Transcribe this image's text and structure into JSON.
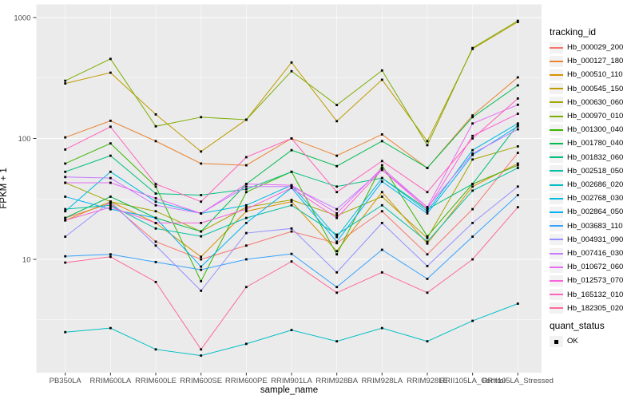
{
  "figure": {
    "background": "#FFFFFF",
    "panel_background": "#EBEBEB",
    "gridline_color": "#FFFFFF",
    "axis_text_color": "#4D4D4D",
    "tick_color": "#333333",
    "point_color": "#000000",
    "legend_key_fill": "#F2F2F2"
  },
  "chart_data": {
    "type": "line",
    "title": "",
    "xlabel": "sample_name",
    "ylabel": "FPKM + 1",
    "y_scale": "log10",
    "y_ticks": [
      1000,
      100,
      10
    ],
    "y_tick_labels": [
      "1000",
      "100",
      "10"
    ],
    "y_minor_ticks": [
      316.2,
      31.62,
      3.162
    ],
    "ylim": [
      1.4,
      1150
    ],
    "grid": "on",
    "legend_position": "right",
    "point_shape": "filled-square",
    "categories": [
      "PB350LA",
      "RRIM600LA",
      "RRIM600LE",
      "RRIM600SE",
      "RRIM600PE",
      "RRIM901LA",
      "RRIM928BA",
      "RRIM928LA",
      "RRIM928LE",
      "RRII105LA_Control",
      "RRII105LA_Stressed"
    ],
    "series": [
      {
        "name": "Hb_000029_200",
        "color": "#F8766D",
        "values": [
          22,
          29,
          14,
          10,
          13,
          17,
          13.6,
          25,
          11,
          26,
          76
        ]
      },
      {
        "name": "Hb_000127_180",
        "color": "#EA8331",
        "values": [
          102,
          140,
          95,
          62,
          60,
          100,
          72,
          108,
          57,
          155,
          320
        ]
      },
      {
        "name": "Hb_000510_110",
        "color": "#D89000",
        "values": [
          21,
          30,
          20,
          10.5,
          25,
          30,
          11.7,
          36,
          13.5,
          40,
          62
        ]
      },
      {
        "name": "Hb_000545_150",
        "color": "#C09B00",
        "values": [
          285,
          350,
          158,
          78,
          143,
          425,
          139,
          306,
          95,
          550,
          920
        ]
      },
      {
        "name": "Hb_000630_060",
        "color": "#A3A500",
        "values": [
          43,
          30,
          25,
          17,
          27,
          31,
          23,
          33,
          15,
          67,
          86
        ]
      },
      {
        "name": "Hb_000970_010",
        "color": "#7CAE00",
        "values": [
          300,
          455,
          126,
          150,
          143,
          360,
          189,
          365,
          88,
          560,
          940
        ]
      },
      {
        "name": "Hb_001300_040",
        "color": "#39B600",
        "values": [
          62,
          91,
          40,
          6.6,
          36,
          53,
          11,
          60,
          15.5,
          42,
          60
        ]
      },
      {
        "name": "Hb_001780_040",
        "color": "#00BB4E",
        "values": [
          22,
          33,
          22,
          17,
          42,
          80,
          59,
          95,
          57,
          150,
          275
        ]
      },
      {
        "name": "Hb_001832_060",
        "color": "#00BF7D",
        "values": [
          53,
          72,
          35,
          34,
          38,
          53,
          40,
          47,
          26,
          42,
          130
        ]
      },
      {
        "name": "Hb_002518_050",
        "color": "#00C1A3",
        "values": [
          26,
          28,
          18,
          15.5,
          22,
          28,
          16,
          28,
          14,
          37,
          57
        ]
      },
      {
        "name": "Hb_002686_020",
        "color": "#00BFC4",
        "values": [
          2.5,
          2.7,
          1.8,
          1.6,
          2.0,
          2.6,
          2.1,
          2.7,
          2.1,
          3.1,
          4.3
        ]
      },
      {
        "name": "Hb_002768_030",
        "color": "#00BAE0",
        "values": [
          25,
          53,
          30,
          24,
          28,
          41,
          15.3,
          47,
          25,
          80,
          133
        ]
      },
      {
        "name": "Hb_002864_050",
        "color": "#00B0F6",
        "values": [
          33,
          26,
          22,
          8.7,
          20,
          39,
          14,
          44,
          24,
          73,
          126
        ]
      },
      {
        "name": "Hb_003683_110",
        "color": "#35A2FF",
        "values": [
          10.6,
          11,
          9.5,
          8.2,
          10,
          11.1,
          5.9,
          12,
          6.9,
          15.4,
          34
        ]
      },
      {
        "name": "Hb_004931_090",
        "color": "#9590FF",
        "values": [
          15.4,
          30,
          13,
          5.5,
          16.5,
          18,
          7.8,
          20,
          8.8,
          20,
          40
        ]
      },
      {
        "name": "Hb_007416_030",
        "color": "#C77CFF",
        "values": [
          48,
          47,
          28,
          24,
          40,
          40,
          26,
          55,
          27,
          75,
          119
        ]
      },
      {
        "name": "Hb_010672_060",
        "color": "#E76BF3",
        "values": [
          43,
          43,
          32,
          24,
          42,
          41,
          24,
          57,
          27,
          133,
          190
        ]
      },
      {
        "name": "Hb_012573_070",
        "color": "#FA62DB",
        "values": [
          21,
          27,
          20,
          20,
          26,
          39,
          22,
          55,
          26,
          105,
          160
        ]
      },
      {
        "name": "Hb_165132_010",
        "color": "#FF62BC",
        "values": [
          81,
          125,
          42,
          30,
          70,
          100,
          36,
          65,
          36,
          100,
          214
        ]
      },
      {
        "name": "Hb_182305_020",
        "color": "#FF6A98",
        "values": [
          9.4,
          10.5,
          6.5,
          1.8,
          5.9,
          9.6,
          5.3,
          7.8,
          5.3,
          10,
          27
        ]
      }
    ]
  },
  "legend": {
    "tracking_title": "tracking_id",
    "quant_title": "quant_status",
    "quant_items": [
      {
        "label": "OK"
      }
    ]
  }
}
